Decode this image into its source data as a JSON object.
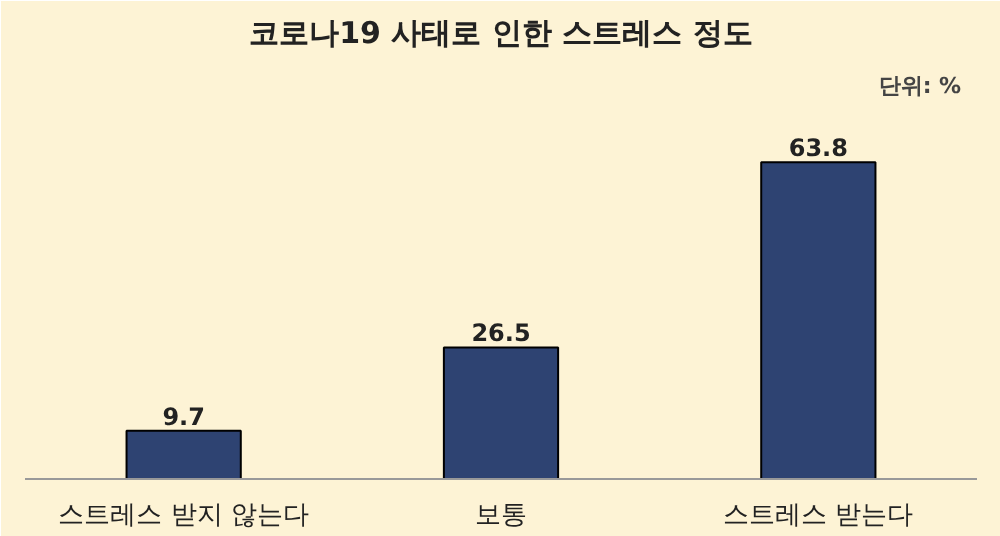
{
  "chart_data": {
    "type": "bar",
    "title": "코로나19 사태로 인한 스트레스 정도",
    "annotations": [
      "단위: %"
    ],
    "categories": [
      "스트레스 받지 않는다",
      "보통",
      "스트레스 받는다"
    ],
    "values": [
      9.7,
      26.5,
      63.8
    ],
    "color": "#2e4372",
    "data_labels": true,
    "grid": false
  }
}
